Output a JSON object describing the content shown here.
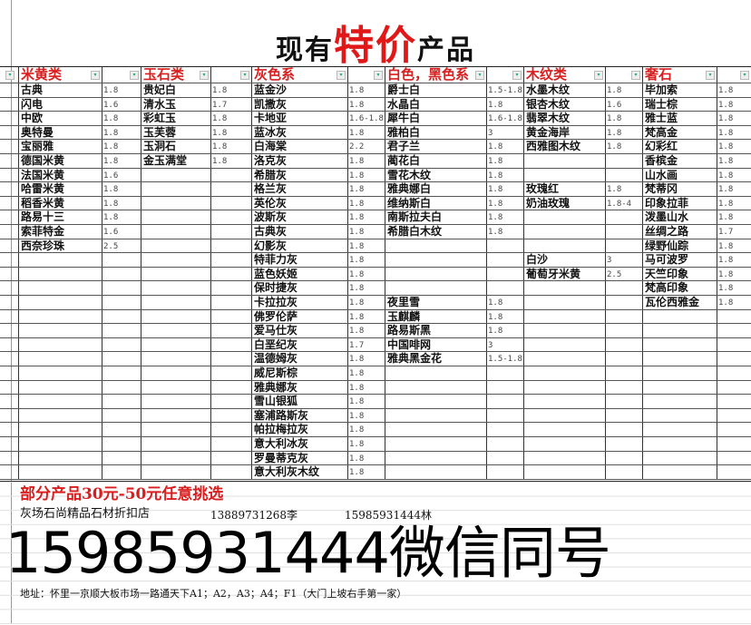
{
  "title": {
    "prefix": "现有",
    "highlight": "特价",
    "suffix": "产品"
  },
  "colors": {
    "header_red": "#d81e1e",
    "title_red": "#e01818"
  },
  "columns": [
    {
      "header": "米黄类",
      "items": [
        [
          "古典",
          "1.8"
        ],
        [
          "闪电",
          "1.6"
        ],
        [
          "中欧",
          "1.8"
        ],
        [
          "奥特曼",
          "1.8"
        ],
        [
          "宝丽雅",
          "1.8"
        ],
        [
          "德国米黄",
          "1.8"
        ],
        [
          "法国米黄",
          "1.6"
        ],
        [
          "哈雷米黄",
          "1.8"
        ],
        [
          "稻香米黄",
          "1.8"
        ],
        [
          "路易十三",
          "1.8"
        ],
        [
          "索菲特金",
          "1.6"
        ],
        [
          "西奈珍珠",
          "2.5"
        ]
      ]
    },
    {
      "header": "玉石类",
      "items": [
        [
          "贵妃白",
          "1.8"
        ],
        [
          "清水玉",
          "1.7"
        ],
        [
          "彩虹玉",
          "1.8"
        ],
        [
          "玉芙蓉",
          "1.8"
        ],
        [
          "玉洞石",
          "1.8"
        ],
        [
          "金玉满堂",
          "1.8"
        ]
      ]
    },
    {
      "header": "灰色系",
      "items": [
        [
          "蓝金沙",
          "1.8"
        ],
        [
          "凯撒灰",
          "1.8"
        ],
        [
          "卡地亚",
          "1.6-1.8"
        ],
        [
          "蓝冰灰",
          "1.8"
        ],
        [
          "白海棠",
          "2.2"
        ],
        [
          "洛克灰",
          "1.8"
        ],
        [
          "希腊灰",
          "1.8"
        ],
        [
          "格兰灰",
          "1.8"
        ],
        [
          "英伦灰",
          "1.8"
        ],
        [
          "波斯灰",
          "1.8"
        ],
        [
          "古典灰",
          "1.8"
        ],
        [
          "幻影灰",
          "1.8"
        ],
        [
          "特菲力灰",
          "1.8"
        ],
        [
          "蓝色妖姬",
          "1.8"
        ],
        [
          "保时捷灰",
          "1.8"
        ],
        [
          "卡拉拉灰",
          "1.8"
        ],
        [
          "佛罗伦萨",
          "1.8"
        ],
        [
          "爱马仕灰",
          "1.8"
        ],
        [
          "白垩纪灰",
          "1.7"
        ],
        [
          "温德姆灰",
          "1.8"
        ],
        [
          "威尼斯棕",
          "1.8"
        ],
        [
          "雅典娜灰",
          "1.8"
        ],
        [
          "雪山银狐",
          "1.8"
        ],
        [
          "塞浦路斯灰",
          "1.8"
        ],
        [
          "帕拉梅拉灰",
          "1.8"
        ],
        [
          "意大利冰灰",
          "1.8"
        ],
        [
          "罗曼蒂克灰",
          "1.8"
        ],
        [
          "意大利灰木纹",
          "1.8"
        ]
      ]
    },
    {
      "header": "白色，黑色系",
      "items": [
        [
          "爵士白",
          "1.5-1.8"
        ],
        [
          "水晶白",
          "1.8"
        ],
        [
          "犀牛白",
          "1.6-1.8"
        ],
        [
          "雅柏白",
          "3"
        ],
        [
          "君子兰",
          "1.8"
        ],
        [
          "蔺花白",
          "1.8"
        ],
        [
          "雪花木纹",
          "1.8"
        ],
        [
          "雅典娜白",
          "1.8"
        ],
        [
          "维纳斯白",
          "1.8"
        ],
        [
          "南斯拉夫白",
          "1.8"
        ],
        [
          "希腊白木纹",
          "1.8"
        ],
        null,
        null,
        null,
        null,
        [
          "夜里雪",
          "1.8"
        ],
        [
          "玉麒麟",
          "1.8"
        ],
        [
          "路易斯黑",
          "1.8"
        ],
        [
          "中国啡网",
          "3"
        ],
        [
          "雅典黑金花",
          "1.5-1.8"
        ]
      ]
    },
    {
      "header": "木纹类",
      "items": [
        [
          "水墨木纹",
          "1.8"
        ],
        [
          "银杏木纹",
          "1.6"
        ],
        [
          "翡翠木纹",
          "1.8"
        ],
        [
          "黄金海岸",
          "1.8"
        ],
        [
          "西雅图木纹",
          "1.8"
        ],
        null,
        null,
        [
          "玫瑰红",
          "1.8"
        ],
        [
          "奶油玫瑰",
          "1.8-4"
        ],
        null,
        null,
        null,
        [
          "白沙",
          "3"
        ],
        [
          "葡萄牙米黄",
          "2.5"
        ]
      ]
    },
    {
      "header": "奢石",
      "items": [
        [
          "毕加索",
          "1.8"
        ],
        [
          "瑞士棕",
          "1.8"
        ],
        [
          "雅士蓝",
          "1.8"
        ],
        [
          "梵高金",
          "1.8"
        ],
        [
          "幻彩红",
          "1.8"
        ],
        [
          "香槟金",
          "1.8"
        ],
        [
          "山水画",
          "1.8"
        ],
        [
          "梵蒂冈",
          "1.8"
        ],
        [
          "印象拉菲",
          "1.8"
        ],
        [
          "泼墨山水",
          "1.8"
        ],
        [
          "丝绸之路",
          "1.7"
        ],
        [
          "绿野仙踪",
          "1.8"
        ],
        [
          "马可波罗",
          "1.8"
        ],
        [
          "天竺印象",
          "1.8"
        ],
        [
          "梵高印象",
          "1.8"
        ],
        [
          "瓦伦西雅金",
          "1.8"
        ]
      ]
    }
  ],
  "footer": {
    "promo": "部分产品30元-50元任意挑选",
    "shop": "灰场石尚精品石材折扣店",
    "phone1": "13889731268李",
    "phone2": "15985931444林",
    "address": "地址：怀里一京顺大板市场一路通天下A1；A2，A3；A4；F1（大门上坡右手第一家）",
    "overlay": "15985931444微信同号"
  }
}
